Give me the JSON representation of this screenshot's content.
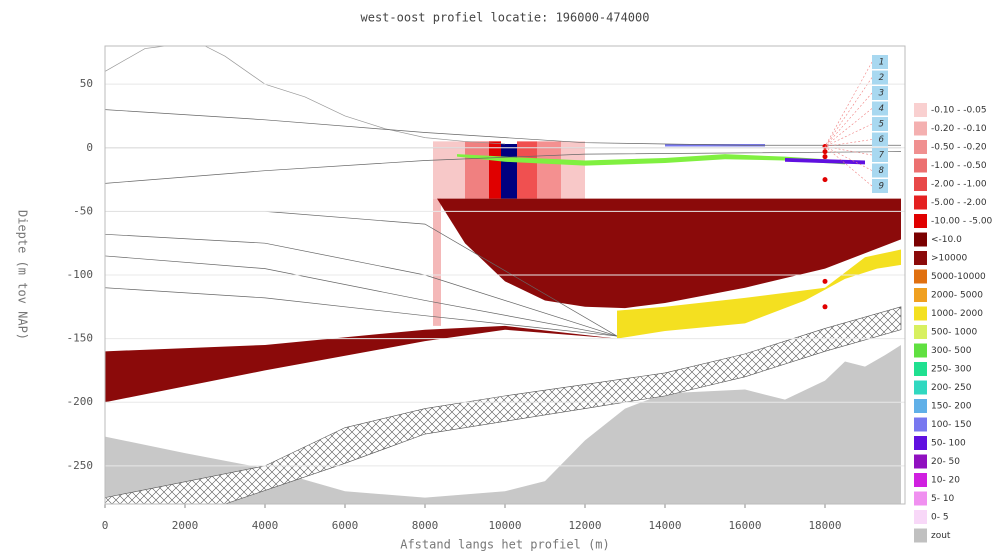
{
  "chart_data": {
    "type": "cross-section",
    "title": "west-oost profiel locatie: 196000-474000",
    "x_label": "Afstand langs het profiel (m)",
    "y_label": "Diepte (m tov NAP)",
    "xlim": [
      0,
      20000
    ],
    "ylim": [
      -280,
      80
    ],
    "xticks": [
      0,
      2000,
      4000,
      6000,
      8000,
      10000,
      12000,
      14000,
      16000,
      18000
    ],
    "yticks": [
      50,
      0,
      -50,
      -100,
      -150,
      -200,
      -250
    ],
    "grid": true,
    "legend": [
      {
        "label": "-0.10 - -0.05",
        "color": "#f9d0d0"
      },
      {
        "label": "-0.20 - -0.10",
        "color": "#f4b0b0"
      },
      {
        "label": "-0.50 - -0.20",
        "color": "#f09090"
      },
      {
        "label": "-1.00 - -0.50",
        "color": "#ec7070"
      },
      {
        "label": "-2.00 - -1.00",
        "color": "#e84848"
      },
      {
        "label": "-5.00 - -2.00",
        "color": "#e42020"
      },
      {
        "label": "-10.00 - -5.00",
        "color": "#e00000"
      },
      {
        "label": "<-10.0",
        "color": "#7a0000"
      },
      {
        "label": ">10000",
        "color": "#8b0a0a"
      },
      {
        "label": "5000-10000",
        "color": "#e07010"
      },
      {
        "label": "2000- 5000",
        "color": "#f0a020"
      },
      {
        "label": "1000- 2000",
        "color": "#f4e020"
      },
      {
        "label": "500- 1000",
        "color": "#d8f060"
      },
      {
        "label": "300- 500",
        "color": "#60e040"
      },
      {
        "label": "250- 300",
        "color": "#20e090"
      },
      {
        "label": "200- 250",
        "color": "#30d8c0"
      },
      {
        "label": "150- 200",
        "color": "#60b0e8"
      },
      {
        "label": "100- 150",
        "color": "#7878f0"
      },
      {
        "label": "50- 100",
        "color": "#6010e0"
      },
      {
        "label": "20- 50",
        "color": "#9010c0"
      },
      {
        "label": "10- 20",
        "color": "#d020e0"
      },
      {
        "label": "5- 10",
        "color": "#f090f0"
      },
      {
        "label": "0- 5",
        "color": "#f8d8f8"
      },
      {
        "label": "zout",
        "color": "#c0c0c0"
      }
    ],
    "well_labels": [
      "1",
      "2",
      "3",
      "4",
      "5",
      "6",
      "7",
      "8",
      "9"
    ],
    "polygons": [
      {
        "color": "#c8c8c8",
        "x": [
          0,
          2000,
          4000,
          6000,
          8000,
          10000,
          11000,
          12000,
          13000,
          14000,
          16000,
          17000,
          18000,
          18500,
          19000,
          19500,
          19900,
          19900,
          0
        ],
        "y": [
          -227,
          -240,
          -252,
          -270,
          -275,
          -270,
          -262,
          -230,
          -205,
          -193,
          -190,
          -198,
          -183,
          -168,
          -172,
          -163,
          -155,
          -280,
          -280
        ]
      },
      {
        "color": "#ffffff",
        "pattern": "hatch",
        "x": [
          0,
          4000,
          6000,
          8000,
          10000,
          12000,
          14000,
          16000,
          18000,
          19900,
          19900,
          18000,
          16000,
          14000,
          12000,
          10000,
          8000,
          6000,
          3000,
          0
        ],
        "y": [
          -275,
          -250,
          -220,
          -205,
          -195,
          -186,
          -177,
          -162,
          -142,
          -125,
          -143,
          -160,
          -180,
          -195,
          -205,
          -215,
          -225,
          -248,
          -280,
          -280
        ]
      },
      {
        "color": "#8b0a0a",
        "x": [
          0,
          4000,
          8000,
          10000,
          12800,
          10000,
          8000,
          4000,
          0
        ],
        "y": [
          -160,
          -155,
          -143,
          -140,
          -150,
          -143,
          -152,
          -175,
          -200
        ]
      },
      {
        "color": "#f4b8b8",
        "x": [
          8200,
          8400,
          8400,
          8200
        ],
        "y": [
          -40,
          -40,
          -140,
          -140
        ]
      },
      {
        "color": "#f7c8c8",
        "x": [
          8200,
          9000,
          9000,
          8200
        ],
        "y": [
          5,
          5,
          -40,
          -40
        ]
      },
      {
        "color": "#f08080",
        "x": [
          9000,
          9600,
          9600,
          9000
        ],
        "y": [
          5,
          5,
          -40,
          -40
        ]
      },
      {
        "color": "#e00000",
        "x": [
          9600,
          9900,
          9900,
          9600
        ],
        "y": [
          5,
          5,
          -40,
          -40
        ]
      },
      {
        "color": "#00007f",
        "x": [
          9900,
          10300,
          10300,
          9900
        ],
        "y": [
          3,
          3,
          -40,
          -40
        ]
      },
      {
        "color": "#f05050",
        "x": [
          10300,
          10800,
          10800,
          10300
        ],
        "y": [
          5,
          5,
          -40,
          -40
        ]
      },
      {
        "color": "#f49090",
        "x": [
          10800,
          11400,
          11400,
          10800
        ],
        "y": [
          5,
          5,
          -40,
          -40
        ]
      },
      {
        "color": "#f8c8c8",
        "x": [
          11400,
          12000,
          12000,
          11400
        ],
        "y": [
          5,
          5,
          -40,
          -40
        ]
      },
      {
        "color": "#8b0a0a",
        "x": [
          8300,
          19900,
          19900,
          18000,
          16000,
          14000,
          13000,
          12000,
          11000,
          10000,
          9000,
          8300
        ],
        "y": [
          -40,
          -40,
          -72,
          -95,
          -110,
          -122,
          -126,
          -125,
          -120,
          -105,
          -75,
          -40
        ]
      },
      {
        "color": "#f4e020",
        "x": [
          12800,
          14000,
          16000,
          17500,
          18500,
          19300,
          19900,
          19900,
          19000,
          18000,
          16000,
          14000,
          12800
        ],
        "y": [
          -150,
          -144,
          -138,
          -120,
          -103,
          -95,
          -92,
          -80,
          -86,
          -110,
          -118,
          -125,
          -128
        ]
      },
      {
        "color": "#80f040",
        "x": [
          8800,
          10000,
          12000,
          14000,
          15500,
          17000,
          18500,
          18500,
          17000,
          15500,
          14000,
          12000,
          10000,
          8800
        ],
        "y": [
          -5,
          -7,
          -10,
          -8,
          -5,
          -7,
          -10,
          -13,
          -10,
          -9,
          -12,
          -14,
          -11,
          -7
        ]
      },
      {
        "color": "#6010e0",
        "x": [
          17000,
          19000,
          19000,
          17000
        ],
        "y": [
          -8,
          -10,
          -13,
          -11
        ]
      },
      {
        "color": "#7878f0",
        "x": [
          14000,
          16500,
          16500,
          14000
        ],
        "y": [
          3,
          3,
          1,
          1
        ]
      }
    ],
    "lines": [
      {
        "color": "#999999",
        "x": [
          0,
          1000,
          1500,
          2500,
          3000,
          4000,
          5000,
          6000,
          7000,
          8000,
          9000,
          10000
        ],
        "y": [
          60,
          78,
          80,
          80,
          72,
          50,
          40,
          25,
          15,
          8,
          5,
          3
        ]
      },
      {
        "color": "#666666",
        "x": [
          0,
          4000,
          8000,
          12000,
          16000,
          19900
        ],
        "y": [
          30,
          22,
          12,
          4,
          2,
          2
        ]
      },
      {
        "color": "#666666",
        "x": [
          0,
          4000,
          8000,
          12000,
          16000,
          19900
        ],
        "y": [
          0,
          0,
          0,
          0,
          0,
          0
        ]
      },
      {
        "color": "#666666",
        "x": [
          0,
          4000,
          8000,
          12000,
          16000,
          19900
        ],
        "y": [
          -28,
          -18,
          -10,
          -5,
          -4,
          -3
        ]
      },
      {
        "color": "#666666",
        "x": [
          0,
          4000,
          8000,
          12800
        ],
        "y": [
          -50,
          -50,
          -60,
          -148
        ]
      },
      {
        "color": "#666666",
        "x": [
          0,
          4000,
          8000,
          12800
        ],
        "y": [
          -68,
          -75,
          -100,
          -148
        ]
      },
      {
        "color": "#666666",
        "x": [
          0,
          4000,
          8000,
          12800
        ],
        "y": [
          -85,
          -95,
          -120,
          -148
        ]
      },
      {
        "color": "#666666",
        "x": [
          0,
          4000,
          8000,
          12800
        ],
        "y": [
          -110,
          -118,
          -132,
          -148
        ]
      }
    ],
    "points": {
      "color": "#e00000",
      "x": [
        18000,
        18000,
        18000,
        18000,
        18000,
        18000
      ],
      "y": [
        1,
        -3,
        -7,
        -25,
        -105,
        -125
      ]
    }
  }
}
